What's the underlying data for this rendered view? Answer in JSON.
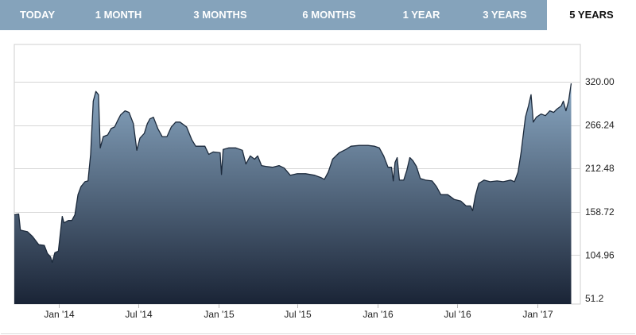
{
  "tabs": [
    {
      "label": "TODAY",
      "active": false
    },
    {
      "label": "1 MONTH",
      "active": false
    },
    {
      "label": "3 MONTHS",
      "active": false
    },
    {
      "label": "6 MONTHS",
      "active": false
    },
    {
      "label": "1 YEAR",
      "active": false
    },
    {
      "label": "3 YEARS",
      "active": false
    },
    {
      "label": "5 YEARS",
      "active": true
    }
  ],
  "colors": {
    "tab_bar": "#85a3bb",
    "area_top": "#8aa8c3",
    "area_bottom": "#1a2436",
    "line": "#1c2a3c",
    "grid": "#d6d6d6"
  },
  "chart_data": {
    "type": "area",
    "title": "",
    "xlabel": "",
    "ylabel": "",
    "ylim": [
      51.2,
      320.0
    ],
    "xlim": [
      "2013-09-20",
      "2017-04-10"
    ],
    "yticks": [
      {
        "value": 320.0,
        "label": "320.00"
      },
      {
        "value": 266.24,
        "label": "266.24"
      },
      {
        "value": 212.48,
        "label": "212.48"
      },
      {
        "value": 158.72,
        "label": "158.72"
      },
      {
        "value": 104.96,
        "label": "104.96"
      },
      {
        "value": 51.2,
        "label": "51.2"
      }
    ],
    "xticks": [
      {
        "date": "2014-01-01",
        "label": "Jan '14"
      },
      {
        "date": "2014-07-01",
        "label": "Jul '14"
      },
      {
        "date": "2015-01-01",
        "label": "Jan '15"
      },
      {
        "date": "2015-07-01",
        "label": "Jul '15"
      },
      {
        "date": "2016-01-01",
        "label": "Jan '16"
      },
      {
        "date": "2016-07-01",
        "label": "Jul '16"
      },
      {
        "date": "2017-01-01",
        "label": "Jan '17"
      }
    ],
    "grid": true,
    "legend": "none",
    "series": [
      {
        "points": [
          [
            "2013-09-20",
            155
          ],
          [
            "2013-09-30",
            156
          ],
          [
            "2013-10-04",
            136
          ],
          [
            "2013-10-20",
            134
          ],
          [
            "2013-11-01",
            128
          ],
          [
            "2013-11-15",
            118
          ],
          [
            "2013-11-28",
            117
          ],
          [
            "2013-12-05",
            107
          ],
          [
            "2013-12-12",
            103
          ],
          [
            "2013-12-16",
            96
          ],
          [
            "2013-12-22",
            108
          ],
          [
            "2013-12-30",
            110
          ],
          [
            "2014-01-08",
            153
          ],
          [
            "2014-01-12",
            145
          ],
          [
            "2014-01-22",
            148
          ],
          [
            "2014-01-30",
            148
          ],
          [
            "2014-02-06",
            155
          ],
          [
            "2014-02-13",
            180
          ],
          [
            "2014-02-20",
            190
          ],
          [
            "2014-03-01",
            196
          ],
          [
            "2014-03-08",
            197
          ],
          [
            "2014-03-14",
            230
          ],
          [
            "2014-03-20",
            296
          ],
          [
            "2014-03-26",
            308
          ],
          [
            "2014-04-01",
            304
          ],
          [
            "2014-04-05",
            238
          ],
          [
            "2014-04-12",
            252
          ],
          [
            "2014-04-22",
            254
          ],
          [
            "2014-04-30",
            262
          ],
          [
            "2014-05-08",
            264
          ],
          [
            "2014-05-15",
            272
          ],
          [
            "2014-05-22",
            279
          ],
          [
            "2014-06-01",
            284
          ],
          [
            "2014-06-10",
            282
          ],
          [
            "2014-06-20",
            268
          ],
          [
            "2014-06-28",
            235
          ],
          [
            "2014-07-05",
            250
          ],
          [
            "2014-07-15",
            256
          ],
          [
            "2014-07-22",
            268
          ],
          [
            "2014-07-28",
            274
          ],
          [
            "2014-08-05",
            276
          ],
          [
            "2014-08-15",
            262
          ],
          [
            "2014-08-25",
            252
          ],
          [
            "2014-09-05",
            252
          ],
          [
            "2014-09-15",
            264
          ],
          [
            "2014-09-25",
            270
          ],
          [
            "2014-10-05",
            270
          ],
          [
            "2014-10-20",
            264
          ],
          [
            "2014-11-01",
            248
          ],
          [
            "2014-11-10",
            240
          ],
          [
            "2014-11-20",
            240
          ],
          [
            "2014-12-01",
            240
          ],
          [
            "2014-12-10",
            230
          ],
          [
            "2014-12-20",
            233
          ],
          [
            "2015-01-05",
            232
          ],
          [
            "2015-01-08",
            205
          ],
          [
            "2015-01-12",
            236
          ],
          [
            "2015-01-25",
            238
          ],
          [
            "2015-02-10",
            238
          ],
          [
            "2015-02-25",
            235
          ],
          [
            "2015-03-05",
            218
          ],
          [
            "2015-03-15",
            228
          ],
          [
            "2015-03-25",
            224
          ],
          [
            "2015-04-01",
            228
          ],
          [
            "2015-04-10",
            216
          ],
          [
            "2015-04-20",
            215
          ],
          [
            "2015-05-05",
            214
          ],
          [
            "2015-05-20",
            216
          ],
          [
            "2015-06-01",
            213
          ],
          [
            "2015-06-15",
            204
          ],
          [
            "2015-07-01",
            206
          ],
          [
            "2015-07-20",
            206
          ],
          [
            "2015-08-10",
            204
          ],
          [
            "2015-08-25",
            201
          ],
          [
            "2015-09-01",
            199
          ],
          [
            "2015-09-10",
            208
          ],
          [
            "2015-09-20",
            224
          ],
          [
            "2015-10-05",
            232
          ],
          [
            "2015-10-20",
            236
          ],
          [
            "2015-11-01",
            240
          ],
          [
            "2015-11-20",
            241
          ],
          [
            "2015-12-10",
            241
          ],
          [
            "2015-12-25",
            240
          ],
          [
            "2016-01-05",
            238
          ],
          [
            "2016-01-15",
            228
          ],
          [
            "2016-01-25",
            214
          ],
          [
            "2016-02-02",
            214
          ],
          [
            "2016-02-06",
            197
          ],
          [
            "2016-02-10",
            220
          ],
          [
            "2016-02-15",
            226
          ],
          [
            "2016-02-20",
            198
          ],
          [
            "2016-03-01",
            198
          ],
          [
            "2016-03-08",
            210
          ],
          [
            "2016-03-15",
            226
          ],
          [
            "2016-03-22",
            222
          ],
          [
            "2016-03-30",
            215
          ],
          [
            "2016-04-08",
            200
          ],
          [
            "2016-04-20",
            198
          ],
          [
            "2016-05-05",
            197
          ],
          [
            "2016-05-15",
            190
          ],
          [
            "2016-05-25",
            180
          ],
          [
            "2016-06-10",
            180
          ],
          [
            "2016-06-25",
            174
          ],
          [
            "2016-07-10",
            172
          ],
          [
            "2016-07-22",
            166
          ],
          [
            "2016-08-01",
            166
          ],
          [
            "2016-08-06",
            160
          ],
          [
            "2016-08-12",
            178
          ],
          [
            "2016-08-20",
            194
          ],
          [
            "2016-09-01",
            198
          ],
          [
            "2016-09-15",
            196
          ],
          [
            "2016-10-01",
            197
          ],
          [
            "2016-10-15",
            196
          ],
          [
            "2016-11-01",
            198
          ],
          [
            "2016-11-10",
            196
          ],
          [
            "2016-11-18",
            208
          ],
          [
            "2016-11-25",
            232
          ],
          [
            "2016-12-05",
            276
          ],
          [
            "2016-12-12",
            290
          ],
          [
            "2016-12-18",
            304
          ],
          [
            "2016-12-23",
            270
          ],
          [
            "2016-12-30",
            276
          ],
          [
            "2017-01-10",
            280
          ],
          [
            "2017-01-20",
            278
          ],
          [
            "2017-01-30",
            284
          ],
          [
            "2017-02-08",
            282
          ],
          [
            "2017-02-15",
            286
          ],
          [
            "2017-02-25",
            290
          ],
          [
            "2017-03-02",
            296
          ],
          [
            "2017-03-08",
            284
          ],
          [
            "2017-03-14",
            296
          ],
          [
            "2017-03-20",
            318
          ]
        ]
      }
    ]
  }
}
